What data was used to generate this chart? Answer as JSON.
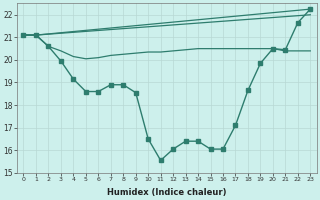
{
  "xlabel": "Humidex (Indice chaleur)",
  "bg_color": "#cdf0ec",
  "grid_color": "#b8d8d4",
  "line_color": "#2e7d6e",
  "xlim": [
    -0.5,
    23.5
  ],
  "ylim": [
    15,
    22.5
  ],
  "yticks": [
    15,
    16,
    17,
    18,
    19,
    20,
    21,
    22
  ],
  "xticks": [
    0,
    1,
    2,
    3,
    4,
    5,
    6,
    7,
    8,
    9,
    10,
    11,
    12,
    13,
    14,
    15,
    16,
    17,
    18,
    19,
    20,
    21,
    22,
    23
  ],
  "series_valley_x": [
    0,
    1,
    2,
    3,
    4,
    5,
    6,
    7,
    8,
    9,
    10,
    11,
    12,
    13,
    14,
    15,
    16,
    17,
    18,
    19,
    20,
    21,
    22,
    23
  ],
  "series_valley_y": [
    21.1,
    21.1,
    20.6,
    19.95,
    19.15,
    18.6,
    18.6,
    18.9,
    18.9,
    18.55,
    16.5,
    15.55,
    16.05,
    16.4,
    16.4,
    16.05,
    16.05,
    17.1,
    18.65,
    19.85,
    20.5,
    20.45,
    21.65,
    22.25
  ],
  "series_line1_x": [
    0,
    1,
    23
  ],
  "series_line1_y": [
    21.1,
    21.1,
    22.25
  ],
  "series_line2_x": [
    0,
    1,
    23
  ],
  "series_line2_y": [
    21.1,
    21.1,
    22.0
  ],
  "series_flat_x": [
    0,
    1,
    2,
    3,
    4,
    5,
    6,
    7,
    8,
    9,
    10,
    11,
    12,
    13,
    14,
    15,
    16,
    17,
    18,
    19,
    20,
    21,
    22,
    23
  ],
  "series_flat_y": [
    21.1,
    21.1,
    20.6,
    20.4,
    20.15,
    20.05,
    20.1,
    20.2,
    20.25,
    20.3,
    20.35,
    20.35,
    20.4,
    20.45,
    20.5,
    20.5,
    20.5,
    20.5,
    20.5,
    20.5,
    20.5,
    20.4,
    20.4,
    20.4
  ]
}
